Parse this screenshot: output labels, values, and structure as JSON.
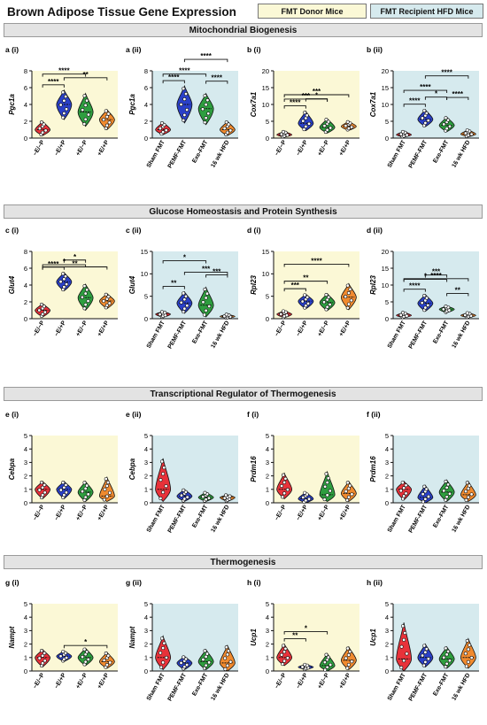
{
  "figure": {
    "title": "Brown Adipose Tissue Gene Expression",
    "legend": {
      "donor": {
        "label": "FMT Donor Mice",
        "color": "#fbf8d6"
      },
      "recipient": {
        "label": "FMT Recipient HFD Mice",
        "color": "#d6eaee"
      }
    },
    "sections": [
      "Mitochondrial Biogenesis",
      "Glucose Homeostasis and Protein Synthesis",
      "Transcriptional Regulator of Thermogenesis",
      "Thermogenesis"
    ],
    "group_colors": {
      "donor": [
        "#e8323a",
        "#2a40c8",
        "#2e9e3f",
        "#f08a2e"
      ],
      "recipient": [
        "#e8323a",
        "#2a40c8",
        "#2e9e3f",
        "#f08a2e"
      ]
    }
  },
  "chart_data": [
    {
      "id": "a (i)",
      "type": "violin",
      "ylabel": "Pgc1a",
      "group": "donor",
      "ylim": [
        0,
        8
      ],
      "yticks": [
        0,
        2,
        4,
        6,
        8
      ],
      "categories": [
        "−E/−P",
        "−E/+P",
        "+E/−P",
        "+E/+P"
      ],
      "medians": [
        1.0,
        4.0,
        3.1,
        2.2
      ],
      "ranges": [
        [
          0.3,
          2.0
        ],
        [
          2.2,
          5.7
        ],
        [
          1.4,
          5.3
        ],
        [
          1.0,
          3.4
        ]
      ],
      "significance": [
        {
          "pair": [
            0,
            1
          ],
          "label": "****"
        },
        {
          "pair": [
            1,
            3
          ],
          "label": "**"
        },
        {
          "pair": [
            0,
            2
          ],
          "label": "****"
        }
      ]
    },
    {
      "id": "a (ii)",
      "type": "violin",
      "ylabel": "Pgc1a",
      "group": "recipient",
      "ylim": [
        0,
        8
      ],
      "yticks": [
        0,
        2,
        4,
        6,
        8
      ],
      "categories": [
        "Sham FMT",
        "PEMF-FMT",
        "Exe-FMT",
        "16 wk HFD"
      ],
      "medians": [
        1.0,
        4.0,
        3.5,
        1.0
      ],
      "ranges": [
        [
          0.4,
          1.9
        ],
        [
          1.8,
          6.2
        ],
        [
          1.6,
          5.3
        ],
        [
          0.3,
          2.0
        ]
      ],
      "significance": [
        {
          "pair": [
            0,
            1
          ],
          "label": "****"
        },
        {
          "pair": [
            2,
            3
          ],
          "label": "****"
        },
        {
          "pair": [
            0,
            2
          ],
          "label": "****"
        },
        {
          "pair": [
            1,
            3
          ],
          "label": "****"
        }
      ]
    },
    {
      "id": "b (i)",
      "type": "violin",
      "ylabel": "Cox7a1",
      "group": "donor",
      "ylim": [
        0,
        20
      ],
      "yticks": [
        0,
        5,
        10,
        15,
        20
      ],
      "categories": [
        "−E/−P",
        "−E/+P",
        "+E/−P",
        "+E/+P"
      ],
      "medians": [
        1.0,
        4.4,
        3.2,
        3.5
      ],
      "ranges": [
        [
          0.3,
          2.0
        ],
        [
          2.2,
          8.0
        ],
        [
          1.5,
          5.8
        ],
        [
          2.3,
          5.0
        ]
      ],
      "significance": [
        {
          "pair": [
            0,
            1
          ],
          "label": "****"
        },
        {
          "pair": [
            1,
            2
          ],
          "label": "*"
        },
        {
          "pair": [
            0,
            2
          ],
          "label": "***"
        },
        {
          "pair": [
            0,
            3
          ],
          "label": "***"
        }
      ]
    },
    {
      "id": "b (ii)",
      "type": "violin",
      "ylabel": "Cox7a1",
      "group": "recipient",
      "ylim": [
        0,
        20
      ],
      "yticks": [
        0,
        5,
        10,
        15,
        20
      ],
      "categories": [
        "Sham FMT",
        "PEMF-FMT",
        "Exe-FMT",
        "16 wk HFD"
      ],
      "medians": [
        1.0,
        5.6,
        3.8,
        1.2
      ],
      "ranges": [
        [
          0.3,
          2.0
        ],
        [
          3.4,
          8.5
        ],
        [
          1.9,
          6.3
        ],
        [
          0.4,
          2.5
        ]
      ],
      "significance": [
        {
          "pair": [
            0,
            1
          ],
          "label": "****"
        },
        {
          "pair": [
            1,
            2
          ],
          "label": "*"
        },
        {
          "pair": [
            2,
            3
          ],
          "label": "****"
        },
        {
          "pair": [
            0,
            2
          ],
          "label": "****"
        },
        {
          "pair": [
            1,
            3
          ],
          "label": "****"
        }
      ]
    },
    {
      "id": "c (i)",
      "type": "violin",
      "ylabel": "Glut4",
      "group": "donor",
      "ylim": [
        0,
        8
      ],
      "yticks": [
        0,
        2,
        4,
        6,
        8
      ],
      "categories": [
        "−E/−P",
        "−E/+P",
        "+E/−P",
        "+E/+P"
      ],
      "medians": [
        1.0,
        4.4,
        2.5,
        2.1
      ],
      "ranges": [
        [
          0.2,
          1.8
        ],
        [
          3.3,
          5.5
        ],
        [
          1.0,
          4.1
        ],
        [
          1.2,
          3.0
        ]
      ],
      "significance": [
        {
          "pair": [
            0,
            1
          ],
          "label": "****"
        },
        {
          "pair": [
            1,
            2
          ],
          "label": "*"
        },
        {
          "pair": [
            0,
            2
          ],
          "label": "*"
        },
        {
          "pair": [
            0,
            3
          ],
          "label": "**"
        }
      ]
    },
    {
      "id": "c (ii)",
      "type": "violin",
      "ylabel": "Glut4",
      "group": "recipient",
      "ylim": [
        0,
        15
      ],
      "yticks": [
        0,
        5,
        10,
        15
      ],
      "categories": [
        "Sham FMT",
        "PEMF-FMT",
        "Exe-FMT",
        "16 wk HFD"
      ],
      "medians": [
        1.0,
        3.5,
        3.0,
        0.5
      ],
      "ranges": [
        [
          0.3,
          1.6
        ],
        [
          1.2,
          6.0
        ],
        [
          0.4,
          7.0
        ],
        [
          0.1,
          1.0
        ]
      ],
      "significance": [
        {
          "pair": [
            0,
            1
          ],
          "label": "**"
        },
        {
          "pair": [
            2,
            3
          ],
          "label": "***"
        },
        {
          "pair": [
            1,
            3
          ],
          "label": "***"
        },
        {
          "pair": [
            0,
            2
          ],
          "label": "*"
        }
      ]
    },
    {
      "id": "d (i)",
      "type": "violin",
      "ylabel": "Rpl23",
      "group": "donor",
      "ylim": [
        0,
        15
      ],
      "yticks": [
        0,
        5,
        10,
        15
      ],
      "categories": [
        "−E/−P",
        "−E/+P",
        "+E/−P",
        "+E/+P"
      ],
      "medians": [
        1.0,
        3.9,
        3.6,
        4.8
      ],
      "ranges": [
        [
          0.2,
          1.8
        ],
        [
          2.2,
          5.5
        ],
        [
          1.8,
          5.6
        ],
        [
          2.0,
          7.8
        ]
      ],
      "significance": [
        {
          "pair": [
            0,
            1
          ],
          "label": "***"
        },
        {
          "pair": [
            0,
            2
          ],
          "label": "**"
        },
        {
          "pair": [
            0,
            3
          ],
          "label": "****"
        }
      ]
    },
    {
      "id": "d (ii)",
      "type": "violin",
      "ylabel": "Rpl23",
      "group": "recipient",
      "ylim": [
        0,
        20
      ],
      "yticks": [
        0,
        5,
        10,
        15,
        20
      ],
      "categories": [
        "Sham FMT",
        "PEMF-FMT",
        "Exe-FMT",
        "16 wk HFD"
      ],
      "medians": [
        1.0,
        4.6,
        2.8,
        1.0
      ],
      "ranges": [
        [
          0.3,
          1.9
        ],
        [
          2.2,
          7.2
        ],
        [
          1.8,
          3.8
        ],
        [
          0.3,
          1.8
        ]
      ],
      "significance": [
        {
          "pair": [
            0,
            1
          ],
          "label": "****"
        },
        {
          "pair": [
            2,
            3
          ],
          "label": "**"
        },
        {
          "pair": [
            1,
            2
          ],
          "label": "***"
        },
        {
          "pair": [
            0,
            2
          ],
          "label": "*"
        },
        {
          "pair": [
            0,
            3
          ],
          "label": "****"
        }
      ]
    },
    {
      "id": "e (i)",
      "type": "violin",
      "ylabel": "Cebpa",
      "group": "donor",
      "ylim": [
        0,
        5
      ],
      "yticks": [
        0,
        1,
        2,
        3,
        4,
        5
      ],
      "categories": [
        "−E/−P",
        "−E/+P",
        "+E/−P",
        "+E/+P"
      ],
      "medians": [
        1.0,
        1.0,
        0.8,
        0.5
      ],
      "ranges": [
        [
          0.3,
          1.6
        ],
        [
          0.3,
          1.6
        ],
        [
          0.1,
          1.6
        ],
        [
          0.1,
          1.9
        ]
      ],
      "significance": []
    },
    {
      "id": "e (ii)",
      "type": "violin",
      "ylabel": "Cebpa",
      "group": "recipient",
      "ylim": [
        0,
        5
      ],
      "yticks": [
        0,
        1,
        2,
        3,
        4,
        5
      ],
      "categories": [
        "Sham FMT",
        "PEMF-FMT",
        "Exe-FMT",
        "16 wk HFD"
      ],
      "medians": [
        1.0,
        0.5,
        0.4,
        0.4
      ],
      "ranges": [
        [
          0.1,
          3.3
        ],
        [
          0.1,
          1.0
        ],
        [
          0.1,
          0.8
        ],
        [
          0.1,
          0.6
        ]
      ],
      "significance": []
    },
    {
      "id": "f (i)",
      "type": "violin",
      "ylabel": "Prdm16",
      "group": "donor",
      "ylim": [
        0,
        5
      ],
      "yticks": [
        0,
        1,
        2,
        3,
        4,
        5
      ],
      "categories": [
        "−E/−P",
        "−E/+P",
        "+E/−P",
        "+E/+P"
      ],
      "medians": [
        1.0,
        0.3,
        0.6,
        0.7
      ],
      "ranges": [
        [
          0.3,
          2.2
        ],
        [
          0.0,
          0.8
        ],
        [
          0.1,
          2.3
        ],
        [
          0.1,
          1.6
        ]
      ],
      "significance": []
    },
    {
      "id": "f (ii)",
      "type": "violin",
      "ylabel": "Prdm16",
      "group": "recipient",
      "ylim": [
        0,
        5
      ],
      "yticks": [
        0,
        1,
        2,
        3,
        4,
        5
      ],
      "categories": [
        "Sham FMT",
        "PEMF-FMT",
        "Exe-FMT",
        "16 wk HFD"
      ],
      "medians": [
        1.0,
        0.4,
        0.8,
        0.6
      ],
      "ranges": [
        [
          0.2,
          1.6
        ],
        [
          0.0,
          1.3
        ],
        [
          0.1,
          1.7
        ],
        [
          0.1,
          1.6
        ]
      ],
      "significance": []
    },
    {
      "id": "g (i)",
      "type": "violin",
      "ylabel": "Nampt",
      "group": "donor",
      "ylim": [
        0,
        5
      ],
      "yticks": [
        0,
        1,
        2,
        3,
        4,
        5
      ],
      "categories": [
        "−E/−P",
        "−E/+P",
        "+E/−P",
        "+E/+P"
      ],
      "medians": [
        1.0,
        1.1,
        1.0,
        0.7
      ],
      "ranges": [
        [
          0.3,
          1.6
        ],
        [
          0.7,
          1.5
        ],
        [
          0.4,
          1.7
        ],
        [
          0.2,
          1.4
        ]
      ],
      "significance": [
        {
          "pair": [
            1,
            3
          ],
          "label": "*"
        }
      ]
    },
    {
      "id": "g (ii)",
      "type": "violin",
      "ylabel": "Nampt",
      "group": "recipient",
      "ylim": [
        0,
        5
      ],
      "yticks": [
        0,
        1,
        2,
        3,
        4,
        5
      ],
      "categories": [
        "Sham FMT",
        "PEMF-FMT",
        "Exe-FMT",
        "16 wk HFD"
      ],
      "medians": [
        1.0,
        0.6,
        0.7,
        0.6
      ],
      "ranges": [
        [
          0.1,
          2.6
        ],
        [
          0.1,
          1.1
        ],
        [
          0.1,
          1.6
        ],
        [
          0.0,
          1.9
        ]
      ],
      "significance": []
    },
    {
      "id": "h (i)",
      "type": "violin",
      "ylabel": "Ucp1",
      "group": "donor",
      "ylim": [
        0,
        5
      ],
      "yticks": [
        0,
        1,
        2,
        3,
        4,
        5
      ],
      "categories": [
        "−E/−P",
        "−E/+P",
        "+E/−P",
        "+E/+P"
      ],
      "medians": [
        1.0,
        0.3,
        0.4,
        0.8
      ],
      "ranges": [
        [
          0.4,
          2.0
        ],
        [
          0.1,
          0.5
        ],
        [
          0.0,
          1.3
        ],
        [
          0.1,
          1.8
        ]
      ],
      "significance": [
        {
          "pair": [
            0,
            1
          ],
          "label": "**"
        },
        {
          "pair": [
            0,
            2
          ],
          "label": "*"
        }
      ]
    },
    {
      "id": "h (ii)",
      "type": "violin",
      "ylabel": "Ucp1",
      "group": "recipient",
      "ylim": [
        0,
        5
      ],
      "yticks": [
        0,
        1,
        2,
        3,
        4,
        5
      ],
      "categories": [
        "Sham FMT",
        "PEMF-FMT",
        "Exe-FMT",
        "16 wk HFD"
      ],
      "medians": [
        0.9,
        1.0,
        0.9,
        1.0
      ],
      "ranges": [
        [
          0.0,
          3.6
        ],
        [
          0.3,
          2.0
        ],
        [
          0.2,
          1.8
        ],
        [
          0.2,
          2.4
        ]
      ],
      "significance": []
    }
  ]
}
